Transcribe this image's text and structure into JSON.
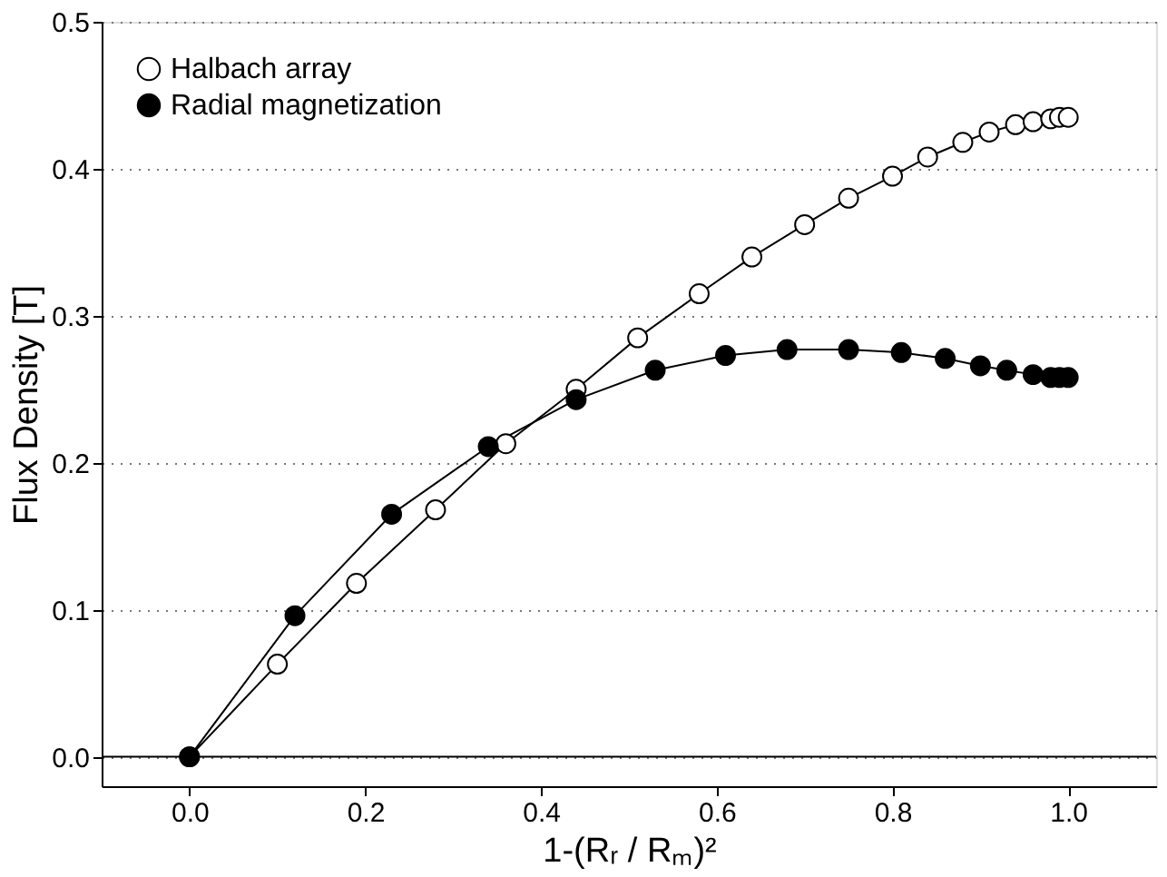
{
  "chart_data": {
    "type": "line",
    "xlabel": "1-(Rᵣ / Rₘ)²",
    "ylabel": "Flux Density [T]",
    "xlim": [
      -0.1,
      1.1
    ],
    "xticks": [
      {
        "value": 0,
        "label": "0.0"
      },
      0.2,
      0.4,
      0.6,
      0.8,
      {
        "value": 1,
        "label": "1.0"
      }
    ],
    "ylim": [
      -0.02,
      0.5
    ],
    "yticks": [
      {
        "value": 0,
        "label": "0.0"
      },
      0.1,
      0.2,
      0.3,
      0.4,
      0.5
    ],
    "grid": "y",
    "legend": "top left",
    "marker": "circle",
    "line_style": "solid",
    "ref_lines": [
      {
        "axis": "y",
        "value": 0,
        "color": "#000000",
        "line_style": "solid"
      }
    ],
    "series": [
      {
        "name": "Halbach array",
        "color": "#000000",
        "x": [
          0,
          0.1,
          0.19,
          0.28,
          0.36,
          0.44,
          0.51,
          0.58,
          0.64,
          0.7,
          0.75,
          0.8,
          0.84,
          0.88,
          0.91,
          0.94,
          0.96,
          0.98,
          0.99,
          1.0
        ],
        "values": [
          0,
          0.063,
          0.118,
          0.168,
          0.213,
          0.25,
          0.285,
          0.315,
          0.34,
          0.362,
          0.38,
          0.395,
          0.408,
          0.418,
          0.425,
          0.43,
          0.432,
          0.434,
          0.435,
          0.435
        ]
      },
      {
        "name": "Radial magnetization",
        "color": "#000000",
        "x": [
          0,
          0.12,
          0.23,
          0.34,
          0.44,
          0.53,
          0.61,
          0.68,
          0.75,
          0.81,
          0.86,
          0.9,
          0.93,
          0.96,
          0.98,
          0.99,
          1.0
        ],
        "values": [
          0,
          0.096,
          0.165,
          0.211,
          0.243,
          0.263,
          0.273,
          0.277,
          0.277,
          0.275,
          0.271,
          0.266,
          0.263,
          0.26,
          0.258,
          0.258,
          0.258
        ]
      }
    ]
  }
}
